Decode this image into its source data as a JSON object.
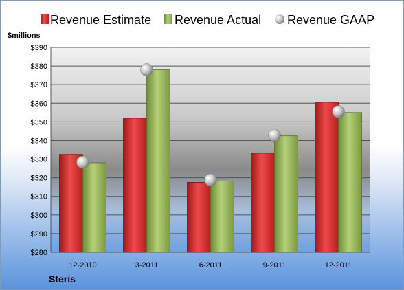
{
  "chart_data": {
    "type": "bar",
    "categories": [
      "12-2010",
      "3-2011",
      "6-2011",
      "9-2011",
      "12-2011"
    ],
    "series": [
      {
        "name": "Revenue Estimate",
        "values": [
          332.5,
          352,
          317.5,
          333.2,
          360.5
        ],
        "color": "#d42a2a"
      },
      {
        "name": "Revenue Actual",
        "values": [
          328,
          378,
          318.2,
          342.5,
          355
        ],
        "color": "#9bbb59"
      },
      {
        "name": "Revenue GAAP",
        "values": [
          328.3,
          378,
          318.8,
          342.8,
          355.5
        ],
        "color": "#b8b8b8",
        "marker": "sphere"
      }
    ],
    "ylabel": "$millions",
    "ylim": [
      280,
      390
    ],
    "yticks": [
      280,
      290,
      300,
      310,
      320,
      330,
      340,
      350,
      360,
      370,
      380,
      390
    ],
    "ytick_labels": [
      "$280",
      "$290",
      "$300",
      "$310",
      "$320",
      "$330",
      "$340",
      "$350",
      "$360",
      "$370",
      "$380",
      "$390"
    ],
    "grid": true,
    "legend": "top",
    "company": "Steris"
  }
}
